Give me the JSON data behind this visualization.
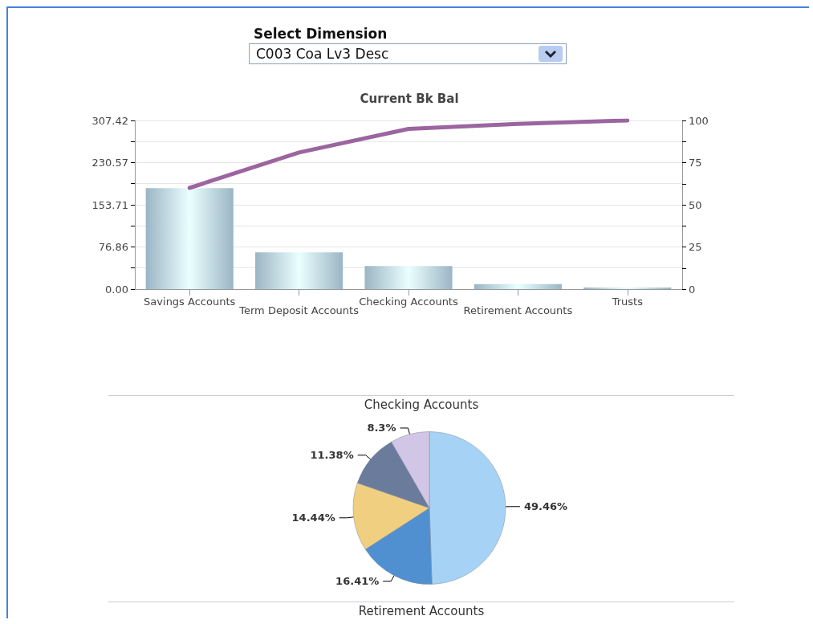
{
  "chart_data": [
    {
      "type": "bar",
      "title": "Current Bk Bal",
      "annotations": [
        "Select Dimension",
        "C003 Coa Lv3 Desc"
      ],
      "categories": [
        "Savings Accounts",
        "Term Deposit Accounts",
        "Checking Accounts",
        "Retirement Accounts",
        "Trusts"
      ],
      "series": [
        {
          "type": "bar",
          "color": "#9bb5c4",
          "values": [
            184,
            67,
            42,
            9,
            3
          ]
        },
        {
          "type": "line",
          "axis": "y2",
          "color": "#9b65a0",
          "values": [
            60,
            81,
            95,
            98,
            100
          ]
        }
      ],
      "ylim": [
        0,
        307.42
      ],
      "yticks": [
        {
          "value": 0,
          "label": "0.00"
        },
        {
          "value": 38.43,
          "label": null
        },
        76.86,
        {
          "value": 115.29,
          "label": null
        },
        153.71,
        {
          "value": 192.14,
          "label": null
        },
        230.57,
        {
          "value": 268.99,
          "label": null
        },
        307.42
      ],
      "y2lim": [
        0,
        100
      ],
      "y2ticks": [
        0,
        {
          "value": 12.5,
          "label": null
        },
        25,
        {
          "value": 37.5,
          "label": null
        },
        50,
        {
          "value": 62.5,
          "label": null
        },
        75,
        {
          "value": 87.5,
          "label": null
        },
        100
      ],
      "grid": "y",
      "line_style": "solid",
      "marker": "none"
    },
    {
      "type": "pie",
      "title": "Checking Accounts",
      "annotations": [
        "Retirement Accounts"
      ],
      "categories": [
        null,
        null,
        null,
        null,
        null
      ],
      "values": [
        49.46,
        16.41,
        14.44,
        11.38,
        8.3
      ],
      "colors": [
        "#a6d3f5",
        "#5190d0",
        "#f0d080",
        "#6b7b9c",
        "#d2c6e6"
      ],
      "value_labels": [
        "49.46%",
        "16.41%",
        "14.44%",
        "11.38%",
        "8.3%"
      ]
    }
  ]
}
